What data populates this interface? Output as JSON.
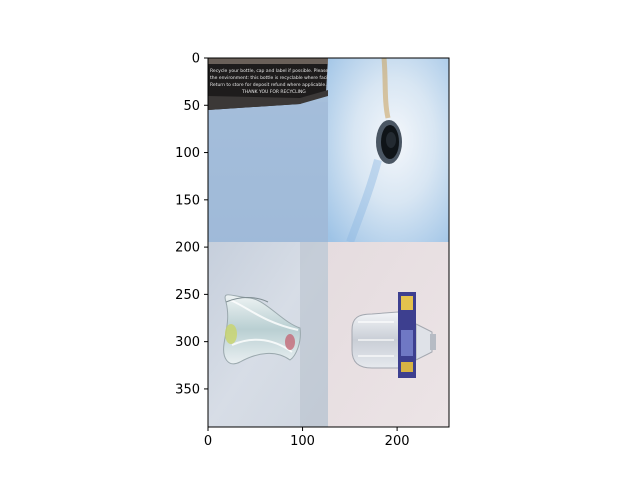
{
  "figure": {
    "x_ticks": [
      "0",
      "100",
      "200"
    ],
    "y_ticks": [
      "0",
      "50",
      "100",
      "150",
      "200",
      "250",
      "300",
      "350"
    ],
    "photos": [
      {
        "subject": "dark box with printed text on blue surface",
        "text_lines": [
          "Recycle your bottle, cap and label if possible. Please consider",
          "the environment: this bottle is recyclable where facilities exist",
          "Return to store for deposit refund where applicable.",
          "THANK YOU FOR RECYCLING"
        ]
      },
      {
        "subject": "bottle opening viewed from above on blue background"
      },
      {
        "subject": "crushed clear plastic bottle on grey surface"
      },
      {
        "subject": "clear plastic bottle with blue label on pink surface"
      }
    ]
  }
}
